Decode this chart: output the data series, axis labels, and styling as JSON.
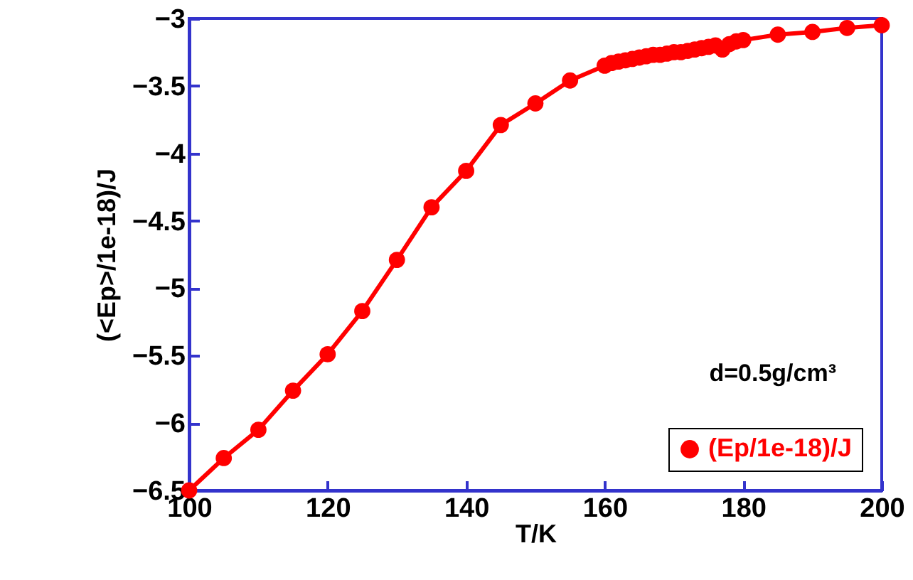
{
  "chart_data": {
    "type": "line",
    "xlabel": "T/K",
    "ylabel": "(<Ep>/1e-18)/J",
    "annotations": [
      "d=0.5g/cm³"
    ],
    "x": [
      100,
      105,
      110,
      115,
      120,
      125,
      130,
      135,
      140,
      145,
      150,
      155,
      160,
      161,
      162,
      163,
      164,
      165,
      166,
      167,
      168,
      169,
      170,
      171,
      172,
      173,
      174,
      175,
      176,
      177,
      178,
      179,
      180,
      185,
      190,
      195,
      200
    ],
    "series": [
      {
        "name": "(Ep/1e-18)/J",
        "color": "#ff0000",
        "values": [
          -6.5,
          -6.26,
          -6.05,
          -5.76,
          -5.49,
          -5.17,
          -4.79,
          -4.4,
          -4.13,
          -3.79,
          -3.63,
          -3.46,
          -3.35,
          -3.33,
          -3.32,
          -3.31,
          -3.3,
          -3.29,
          -3.28,
          -3.27,
          -3.27,
          -3.26,
          -3.25,
          -3.25,
          -3.24,
          -3.23,
          -3.22,
          -3.21,
          -3.2,
          -3.23,
          -3.19,
          -3.17,
          -3.16,
          -3.12,
          -3.1,
          -3.07,
          -3.05
        ]
      }
    ],
    "xlim": [
      100,
      200
    ],
    "xticks": [
      100,
      120,
      140,
      160,
      180,
      200
    ],
    "ylim": [
      -6.5,
      -3
    ],
    "yticks": [
      -6.5,
      -6,
      -5.5,
      -5,
      -4.5,
      -4,
      -3.5,
      -3
    ],
    "grid": false,
    "legend": "bottom right",
    "marker": "circle",
    "line_style": "solid"
  }
}
